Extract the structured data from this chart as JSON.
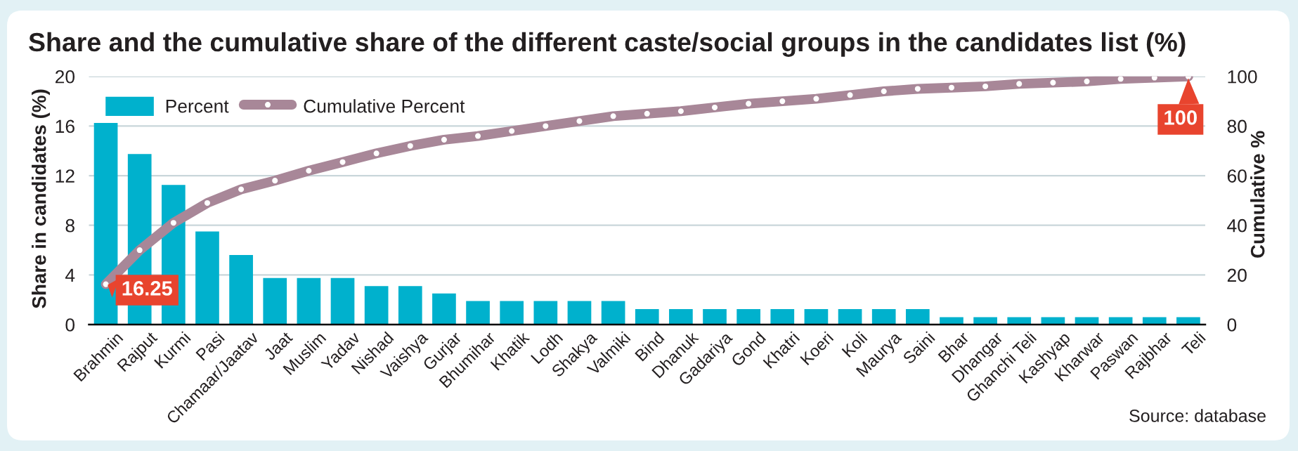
{
  "chart_data": {
    "type": "bar",
    "title": "Share and the cumulative share of the different caste/social groups in the candidates list (%)",
    "ylabel": "Share in candidates (%)",
    "y2label": "Cumulative %",
    "categories": [
      "Brahmin",
      "Rajput",
      "Kurmi",
      "Pasi",
      "Chamaar/Jaatav",
      "Jaat",
      "Muslim",
      "Yadav",
      "Nishad",
      "Vaishya",
      "Gurjar",
      "Bhumihar",
      "Khatik",
      "Lodh",
      "Shakya",
      "Valmiki",
      "Bind",
      "Dhanuk",
      "Gadariya",
      "Gond",
      "Khatri",
      "Koeri",
      "Koli",
      "Maurya",
      "Saini",
      "Bhar",
      "Dhangar",
      "Ghanchi Teli",
      "Kashyap",
      "Kharwar",
      "Paswan",
      "Rajbhar",
      "Teli"
    ],
    "series": [
      {
        "name": "Percent",
        "color": "#00b1cd",
        "values": [
          16.25,
          13.75,
          11.25,
          7.5,
          5.6,
          3.75,
          3.75,
          3.75,
          3.1,
          3.1,
          2.5,
          1.9,
          1.9,
          1.9,
          1.9,
          1.9,
          1.25,
          1.25,
          1.25,
          1.25,
          1.25,
          1.25,
          1.25,
          1.25,
          1.25,
          0.6,
          0.6,
          0.6,
          0.6,
          0.6,
          0.6,
          0.6,
          0.6
        ]
      },
      {
        "name": "Cumulative Percent",
        "type": "line",
        "axis": "y2",
        "color": "#a88798",
        "values": [
          16.25,
          30,
          41,
          49,
          54.5,
          58,
          62,
          65.5,
          69,
          72,
          74.5,
          76,
          78,
          80,
          82,
          84,
          85,
          86,
          87.5,
          89,
          90,
          91,
          92.5,
          94,
          95,
          95.5,
          96,
          97,
          97.5,
          98,
          99,
          99.5,
          100
        ],
        "value_labels": [
          "16.25",
          null,
          null,
          null,
          null,
          null,
          null,
          null,
          null,
          null,
          null,
          null,
          null,
          null,
          null,
          null,
          null,
          null,
          null,
          null,
          null,
          null,
          null,
          null,
          null,
          null,
          null,
          null,
          null,
          null,
          null,
          null,
          "100"
        ]
      }
    ],
    "ylim": [
      0,
      20
    ],
    "yticks": [
      0,
      4,
      8,
      12,
      16,
      20
    ],
    "y2lim": [
      0,
      100
    ],
    "y2ticks": [
      0,
      20,
      40,
      60,
      80,
      100
    ],
    "grid": "y",
    "marker": "circle",
    "legend": "top left",
    "annotations": [
      "Source: database"
    ]
  }
}
